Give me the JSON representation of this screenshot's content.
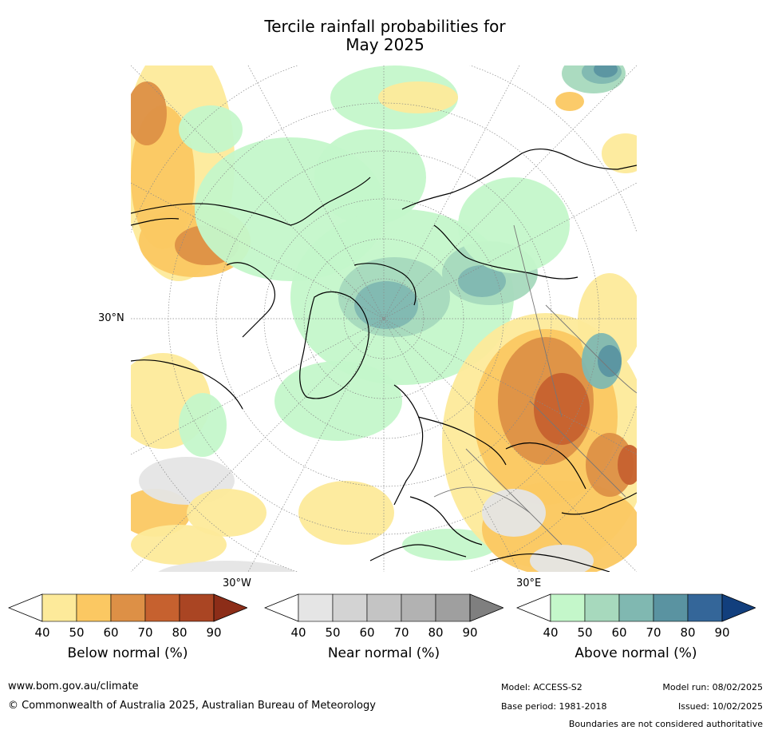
{
  "title": {
    "line1": "Tercile rainfall probabilities for",
    "line2": "May 2025"
  },
  "map": {
    "labels": {
      "lat30": "30°N",
      "lon30w": "30°W",
      "lon30e": "30°E"
    }
  },
  "colorbars": [
    {
      "name": "Below normal (%)",
      "ticks": [
        "40",
        "50",
        "60",
        "70",
        "80",
        "90"
      ],
      "colors": [
        "#ffffff",
        "#fdea9a",
        "#fbc862",
        "#dd9046",
        "#c6612f",
        "#aa4523",
        "#8c2d18"
      ]
    },
    {
      "name": "Near normal (%)",
      "ticks": [
        "40",
        "50",
        "60",
        "70",
        "80",
        "90"
      ],
      "colors": [
        "#ffffff",
        "#e5e5e5",
        "#d3d3d3",
        "#c4c4c4",
        "#b2b2b2",
        "#9f9f9f",
        "#7f7f7f"
      ]
    },
    {
      "name": "Above normal (%)",
      "ticks": [
        "40",
        "50",
        "60",
        "70",
        "80",
        "90"
      ],
      "colors": [
        "#ffffff",
        "#c4f7ca",
        "#a7d9bd",
        "#80b8b1",
        "#5a93a1",
        "#346699",
        "#123f7d"
      ]
    }
  ],
  "footer": {
    "url": "www.bom.gov.au/climate",
    "copyright": "© Commonwealth of Australia 2025, Australian Bureau of Meteorology",
    "model": "Model: ACCESS-S2",
    "model_run": "Model run: 08/02/2025",
    "base_period": "Base period: 1981-2018",
    "issued": "Issued: 10/02/2025",
    "disclaimer": "Boundaries are not considered authoritative"
  }
}
